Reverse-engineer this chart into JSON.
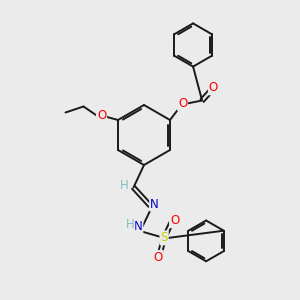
{
  "bg_color": "#ebebeb",
  "bond_color": "#1a1a1a",
  "bond_width": 1.4,
  "font_size": 8.5,
  "atom_colors": {
    "O": "#ff0000",
    "N": "#0000cc",
    "S": "#cccc00",
    "C": "#1a1a1a",
    "H": "#7fbfbf"
  }
}
